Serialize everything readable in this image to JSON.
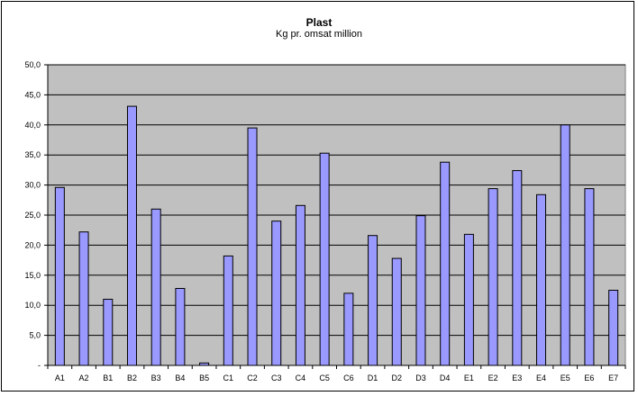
{
  "chart_data": {
    "type": "bar",
    "title": "Plast",
    "subtitle": "Kg pr. omsat million",
    "xlabel": "",
    "ylabel": "",
    "ylim": [
      0,
      50
    ],
    "ytick_step": 5,
    "ytick_labels": [
      "-",
      "5,0",
      "10,0",
      "15,0",
      "20,0",
      "25,0",
      "30,0",
      "35,0",
      "40,0",
      "45,0",
      "50,0"
    ],
    "categories": [
      "A1",
      "A2",
      "B1",
      "B2",
      "B3",
      "B4",
      "B5",
      "C1",
      "C2",
      "C3",
      "C4",
      "C5",
      "C6",
      "D1",
      "D2",
      "D3",
      "D4",
      "E1",
      "E2",
      "E3",
      "E4",
      "E5",
      "E6",
      "E7"
    ],
    "values": [
      29.6,
      22.2,
      11.0,
      43.1,
      26.0,
      12.8,
      0.4,
      18.2,
      39.5,
      24.0,
      26.6,
      35.3,
      12.0,
      21.6,
      17.8,
      24.9,
      33.8,
      21.8,
      29.4,
      32.4,
      28.4,
      40.0,
      29.4,
      12.5
    ],
    "grid": true,
    "legend": "none",
    "colors": {
      "plot_background": "#c0c0c0",
      "bar_fill": "#9999ff",
      "bar_stroke": "#000000",
      "gridline": "#000000"
    }
  }
}
